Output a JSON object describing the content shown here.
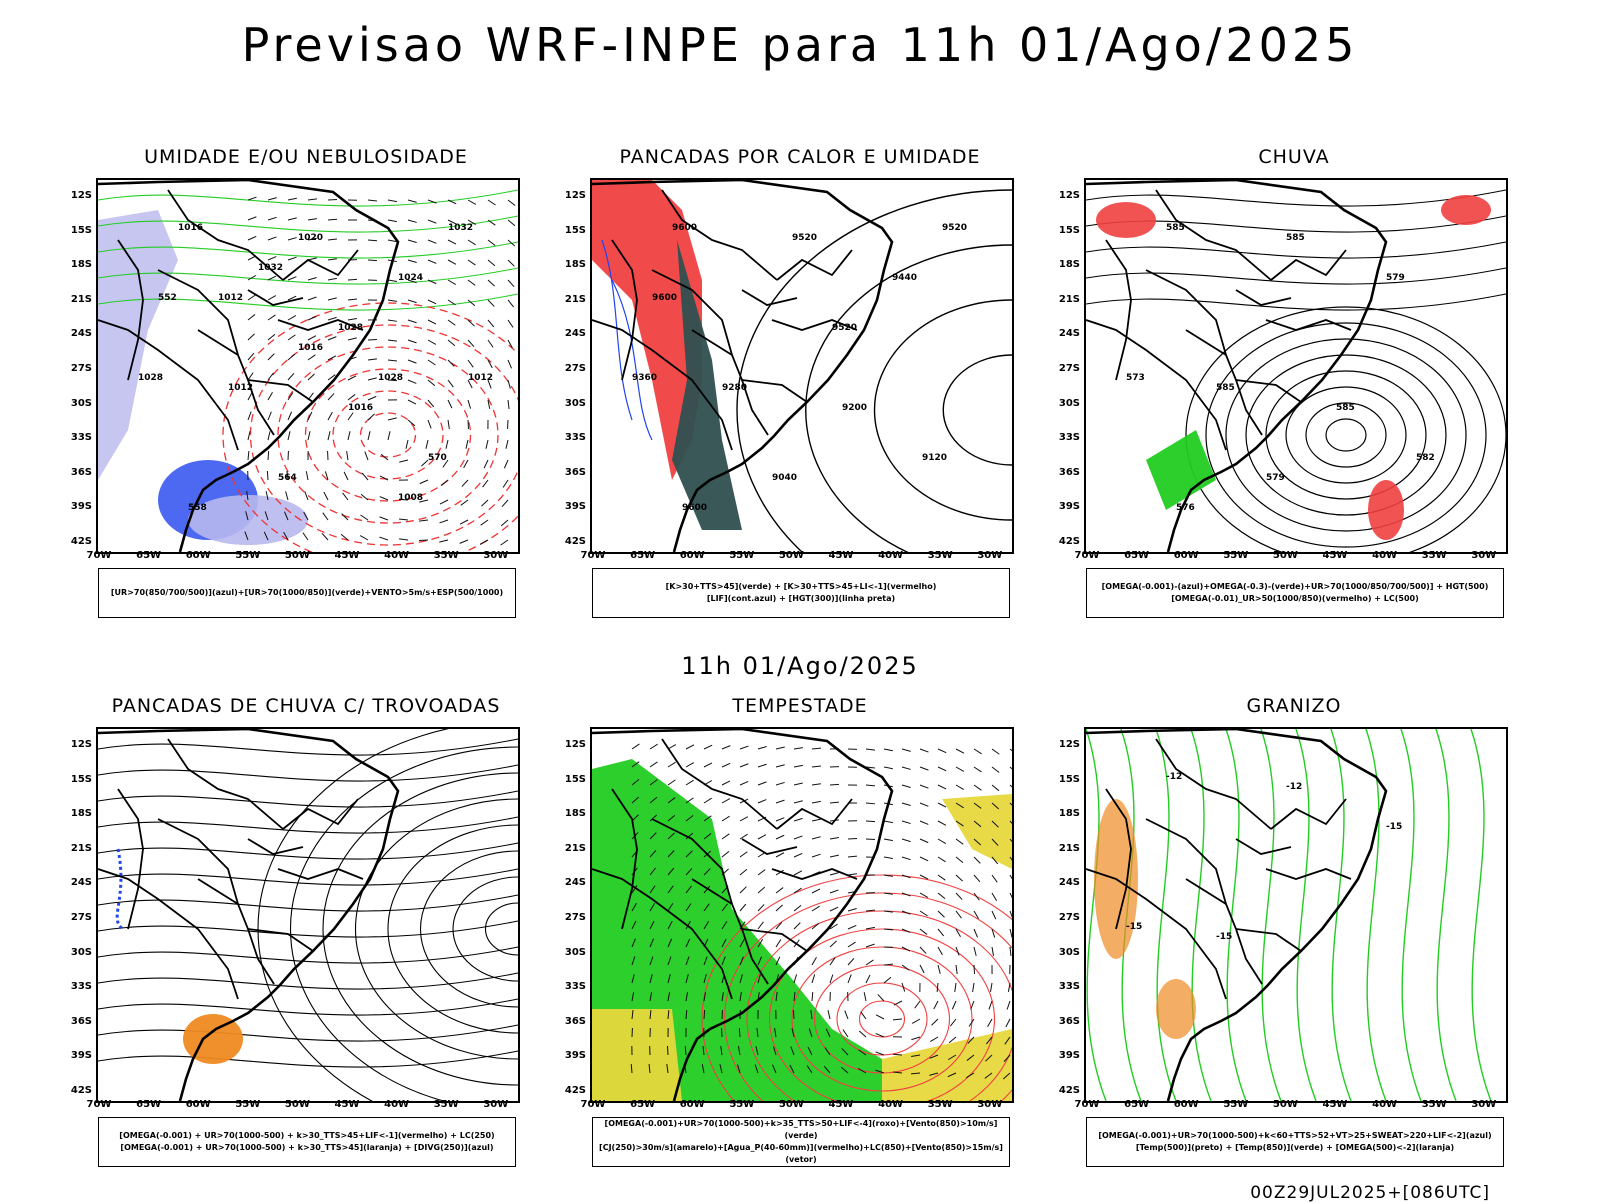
{
  "title": "Previsao WRF-INPE  para 11h 01/Ago/2025",
  "mid_title": "11h 01/Ago/2025",
  "footer": "00Z29JUL2025+[086UTC]",
  "lat_labels": [
    "12S",
    "15S",
    "18S",
    "21S",
    "24S",
    "27S",
    "30S",
    "33S",
    "36S",
    "39S",
    "42S"
  ],
  "lon_labels": [
    "70W",
    "65W",
    "60W",
    "55W",
    "50W",
    "45W",
    "40W",
    "35W",
    "30W"
  ],
  "colors": {
    "red": "#f04040",
    "green": "#22cc22",
    "blue": "#2244ee",
    "lightblue": "#b8b8ee",
    "darkgreen": "#2f4f4f",
    "yellow": "#e6d83c",
    "orange": "#ee8a22"
  },
  "panels": [
    {
      "title": "UMIDADE E/OU NEBULOSIDADE",
      "legend": [
        "[UR>70(850/700/500)](azul)+[UR>70(1000/850)](verde)+VENTO>5m/s+ESP(500/1000)"
      ],
      "labels": [
        "1016",
        "1020",
        "1024",
        "1028",
        "1012",
        "1016",
        "570",
        "564",
        "558",
        "552",
        "1032",
        "1028",
        "1012",
        "1008",
        "1016",
        "1012",
        "1032",
        "1028"
      ]
    },
    {
      "title": "PANCADAS POR CALOR E UMIDADE",
      "legend": [
        "[K>30+TTS>45](verde) + [K>30+TTS>45+LI<-1](vermelho)",
        "[LIF](cont.azul) + [HGT(300)](linha preta)"
      ],
      "labels": [
        "9600",
        "9520",
        "9440",
        "9360",
        "9280",
        "9200",
        "9120",
        "9040",
        "9600",
        "9600",
        "9520",
        "9520"
      ]
    },
    {
      "title": "CHUVA",
      "legend": [
        "[OMEGA(-0.001)-(azul)+OMEGA(-0.3)-(verde)+UR>70(1000/850/700/500)] + HGT(500)",
        "[OMEGA(-0.01)_UR>50(1000/850)(vermelho) + LC(500)"
      ],
      "labels": [
        "585",
        "585",
        "579",
        "573",
        "585",
        "585",
        "582",
        "579",
        "576"
      ]
    },
    {
      "title": "PANCADAS DE CHUVA C/ TROVOADAS",
      "legend": [
        "[OMEGA(-0.001) + UR>70(1000-500) + k>30_TTS>45+LIF<-1](vermelho) + LC(250)",
        "[OMEGA(-0.001) + UR>70(1000-500) + k>30_TTS>45](laranja) + [DIVG(250)](azul)"
      ],
      "labels": []
    },
    {
      "title": "TEMPESTADE",
      "legend": [
        "[OMEGA(-0.001)+UR>70(1000-500)+k>35_TTS>50+LIF<-4](roxo)+[Vento(850)>10m/s](verde)",
        "[CJ(250)>30m/s](amarelo)+[Agua_P(40-60mm)](vermelho)+LC(850)+[Vento(850)>15m/s](vetor)"
      ],
      "labels": []
    },
    {
      "title": "GRANIZO",
      "legend": [
        "[OMEGA(-0.001)+UR>70(1000-500)+k<60+TTS>52+VT>25+SWEAT>220+LIF<-2](azul)",
        "[Temp(500)](preto) + [Temp(850)](verde) + [OMEGA(500)<-2](laranja)"
      ],
      "labels": [
        "-12",
        "-12",
        "-15",
        "-15",
        "-15"
      ]
    }
  ]
}
